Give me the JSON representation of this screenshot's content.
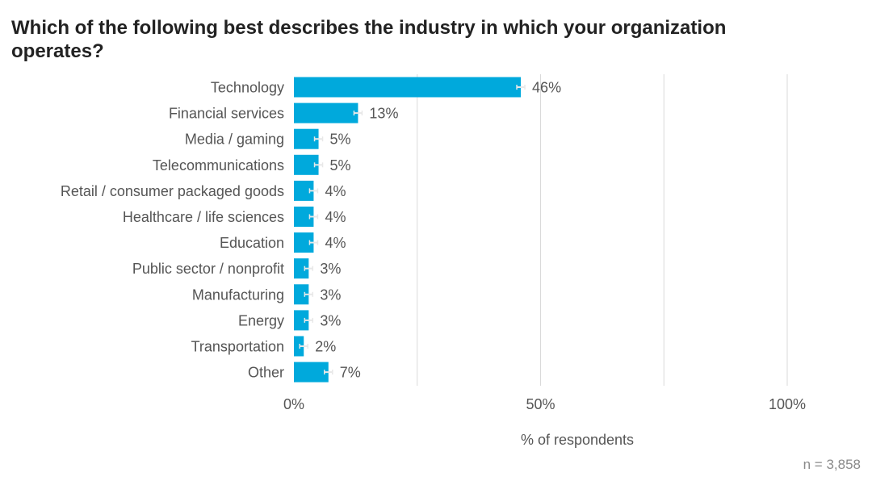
{
  "colors": {
    "bar": "#00a9dc",
    "grid": "#dadada",
    "label_text": "#555555",
    "title_text": "#222222",
    "error_bar": "#e8e8e8"
  },
  "chart_data": {
    "type": "bar",
    "orientation": "horizontal",
    "title": "Which of the following best describes the industry in which your organization operates?",
    "xlabel": "% of respondents",
    "ylabel": "",
    "categories": [
      "Technology",
      "Financial services",
      "Media / gaming",
      "Telecommunications",
      "Retail / consumer packaged goods",
      "Healthcare / life sciences",
      "Education",
      "Public sector / nonprofit",
      "Manufacturing",
      "Energy",
      "Transportation",
      "Other"
    ],
    "values": [
      46,
      13,
      5,
      5,
      4,
      4,
      4,
      3,
      3,
      3,
      2,
      7
    ],
    "value_labels": [
      "46%",
      "13%",
      "5%",
      "5%",
      "4%",
      "4%",
      "4%",
      "3%",
      "3%",
      "3%",
      "2%",
      "7%"
    ],
    "xlim": [
      0,
      100
    ],
    "x_ticks": [
      0,
      50,
      100
    ],
    "x_tick_labels": [
      "0%",
      "50%",
      "100%"
    ],
    "grid": true,
    "error_bars": true,
    "legend": "none"
  },
  "sample_size_label": "n = 3,858"
}
